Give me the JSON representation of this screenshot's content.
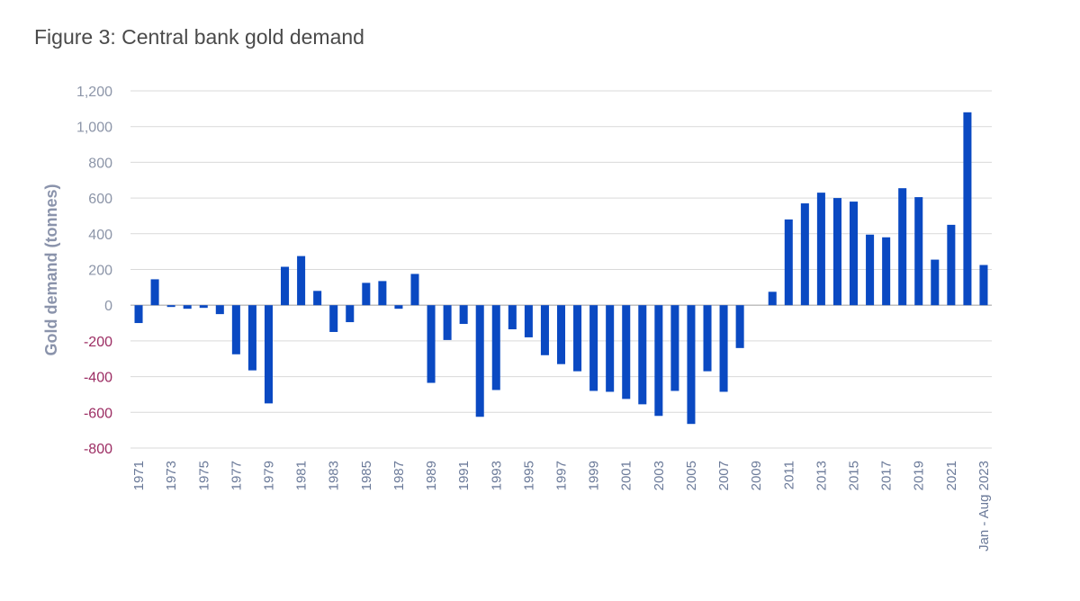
{
  "title": "Figure 3: Central bank gold demand",
  "chart_data": {
    "type": "bar",
    "title": "Figure 3: Central bank gold demand",
    "xlabel": "",
    "ylabel": "Gold demand (tonnes)",
    "ylim": [
      -800,
      1200
    ],
    "yticks": [
      1200,
      1000,
      800,
      600,
      400,
      200,
      0,
      -200,
      -400,
      -600,
      -800
    ],
    "ytick_labels": [
      "1,200",
      "1,000",
      "800",
      "600",
      "400",
      "200",
      "0",
      "-200",
      "-400",
      "-600",
      "-800"
    ],
    "categories": [
      "1971",
      "1972",
      "1973",
      "1974",
      "1975",
      "1976",
      "1977",
      "1978",
      "1979",
      "1980",
      "1981",
      "1982",
      "1983",
      "1984",
      "1985",
      "1986",
      "1987",
      "1988",
      "1989",
      "1990",
      "1991",
      "1992",
      "1993",
      "1994",
      "1995",
      "1996",
      "1997",
      "1998",
      "1999",
      "2000",
      "2001",
      "2002",
      "2003",
      "2004",
      "2005",
      "2006",
      "2007",
      "2008",
      "2009",
      "2010",
      "2011",
      "2012",
      "2013",
      "2014",
      "2015",
      "2016",
      "2017",
      "2018",
      "2019",
      "2020",
      "2021",
      "2022",
      "Jan - Aug 2023"
    ],
    "xtick_labels": [
      "1971",
      "1973",
      "1975",
      "1977",
      "1979",
      "1981",
      "1983",
      "1985",
      "1987",
      "1989",
      "1991",
      "1993",
      "1995",
      "1997",
      "1999",
      "2001",
      "2003",
      "2005",
      "2007",
      "2009",
      "2011",
      "2013",
      "2015",
      "2017",
      "2019",
      "2021",
      "Jan - Aug 2023"
    ],
    "values": [
      -100,
      145,
      -10,
      -20,
      -15,
      -50,
      -275,
      -365,
      -550,
      215,
      275,
      80,
      -150,
      -95,
      125,
      135,
      -20,
      175,
      -435,
      -195,
      -105,
      -625,
      -475,
      -135,
      -180,
      -280,
      -330,
      -370,
      -480,
      -485,
      -525,
      -555,
      -620,
      -480,
      -665,
      -370,
      -485,
      -240,
      0,
      75,
      480,
      570,
      630,
      600,
      580,
      395,
      380,
      655,
      605,
      255,
      450,
      1080,
      225
    ],
    "grid": true,
    "legend": "none",
    "colors": {
      "bar": "#0a49c2",
      "grid": "#d9d9d9",
      "tick_positive": "#8c95a8",
      "tick_negative": "#9c2d63"
    }
  }
}
